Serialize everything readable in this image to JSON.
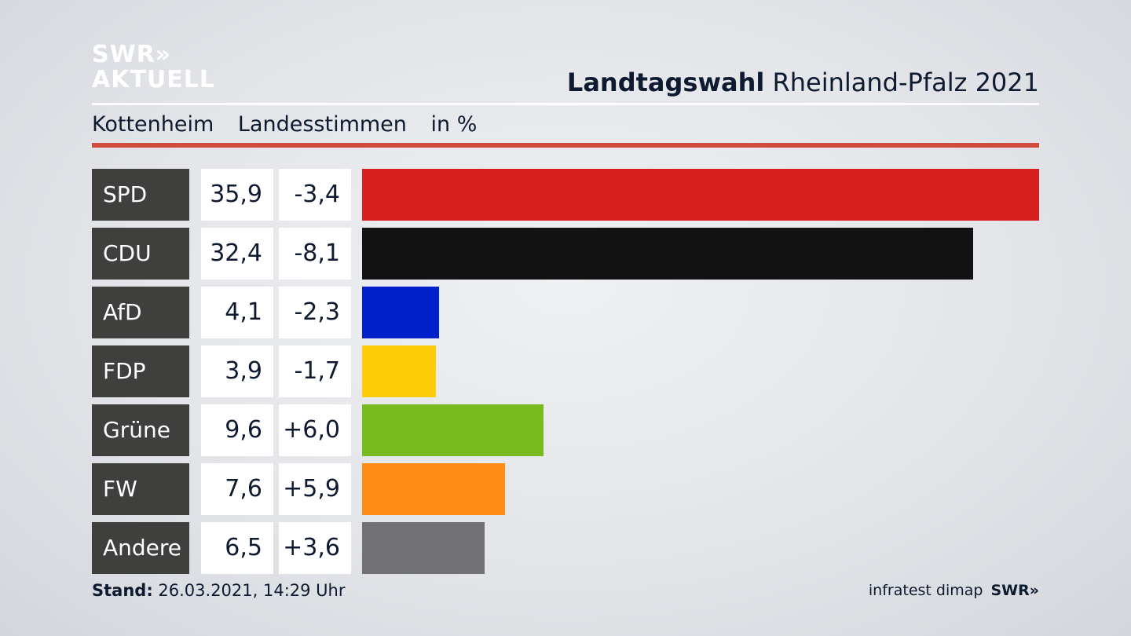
{
  "logo": {
    "line1": "SWR»",
    "line2": "AKTUELL"
  },
  "header": {
    "title_bold": "Landtagswahl",
    "title_rest": " Rheinland-Pfalz 2021",
    "subtitle_place": "Kottenheim",
    "subtitle_type": "Landesstimmen",
    "subtitle_unit": "in %"
  },
  "colors": {
    "accent_rule": "#cf4b3c",
    "party_label_bg": "#3f3f3e"
  },
  "chart_data": {
    "type": "bar",
    "orientation": "horizontal",
    "categories": [
      "SPD",
      "CDU",
      "AfD",
      "FDP",
      "Grüne",
      "FW",
      "Andere"
    ],
    "values": [
      35.9,
      32.4,
      4.1,
      3.9,
      9.6,
      7.6,
      6.5
    ],
    "value_labels": [
      "35,9",
      "32,4",
      "4,1",
      "3,9",
      "9,6",
      "7,6",
      "6,5"
    ],
    "change": [
      -3.4,
      -8.1,
      -2.3,
      -1.7,
      6.0,
      5.9,
      3.6
    ],
    "change_labels": [
      "-3,4",
      "-8,1",
      "-2,3",
      "-1,7",
      "+6,0",
      "+5,9",
      "+3,6"
    ],
    "bar_colors": [
      "#d61f1f",
      "#121212",
      "#0021c9",
      "#ffcc0a",
      "#78bb1e",
      "#ff8c17",
      "#727274"
    ],
    "xlim": [
      0,
      35.9
    ],
    "grid": false,
    "legend": "none"
  },
  "footer": {
    "stand_label": "Stand:",
    "stand_value": " 26.03.2021, 14:29 Uhr",
    "source": "infratest dimap",
    "brand": "SWR»"
  }
}
